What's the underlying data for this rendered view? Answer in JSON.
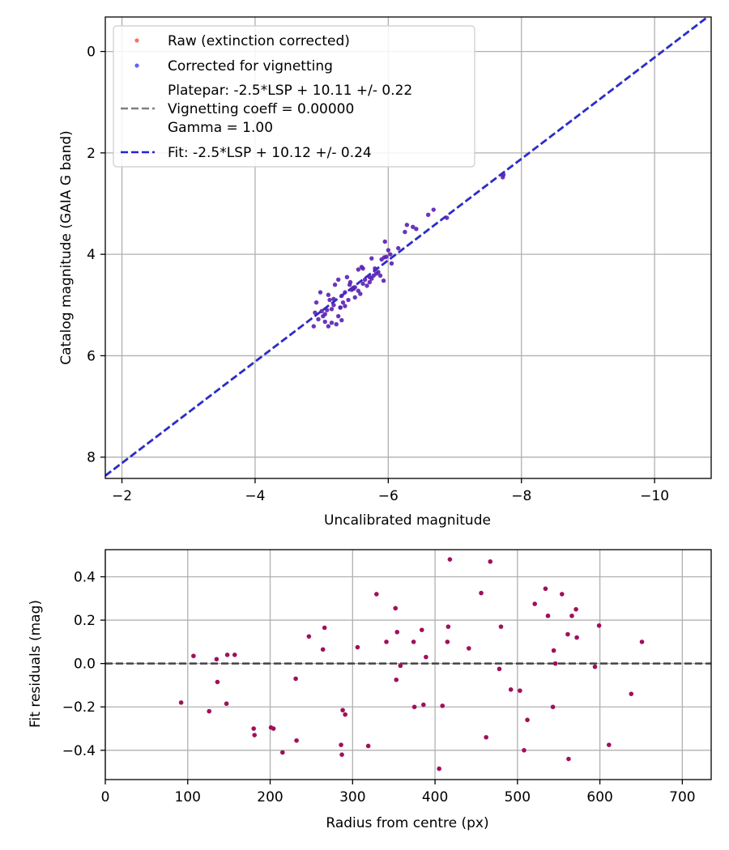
{
  "chart_data": [
    {
      "type": "scatter",
      "xlabel": "Uncalibrated magnitude",
      "ylabel": "Catalog magnitude (GAIA G band)",
      "xlim": [
        -1.75,
        -10.85
      ],
      "ylim": [
        8.42,
        -0.68
      ],
      "x_ticks": [
        -2,
        -4,
        -6,
        -8,
        -10
      ],
      "x_tick_labels": [
        "−2",
        "−4",
        "−6",
        "−8",
        "−10"
      ],
      "y_ticks": [
        0,
        2,
        4,
        6,
        8
      ],
      "y_tick_labels": [
        "0",
        "2",
        "4",
        "6",
        "8"
      ],
      "grid": true,
      "legend_position": "top-left",
      "legend": {
        "raw": "Raw (extinction corrected)",
        "corrected": "Corrected for vignetting",
        "platepar_line1": "Platepar: -2.5*LSP + 10.11 +/- 0.22",
        "platepar_line2": "Vignetting coeff = 0.00000",
        "platepar_line3": "Gamma = 1.00",
        "fit": "Fit: -2.5*LSP + 10.12 +/- 0.24"
      },
      "colors": {
        "raw": "#ff4b3c",
        "corrected": "#3c3cff",
        "overlap": "#5a1fb4",
        "platepar_line": "#808080",
        "fit_line": "#2222dd"
      },
      "lines": {
        "platepar": {
          "slope": 1.0,
          "intercept": 10.11
        },
        "fit": {
          "slope": 1.0,
          "intercept": 10.12
        }
      },
      "series": [
        {
          "name": "Corrected for vignetting",
          "x": [
            -7.73,
            -7.72,
            -6.88,
            -6.68,
            -6.6,
            -6.42,
            -6.37,
            -6.28,
            -6.25,
            -6.15,
            -6.05,
            -6.03,
            -6.0,
            -5.97,
            -5.93,
            -5.95,
            -5.88,
            -5.85,
            -5.8,
            -5.75,
            -5.72,
            -5.65,
            -5.6,
            -5.55,
            -5.5,
            -5.58,
            -5.62,
            -5.45,
            -5.5,
            -5.4,
            -5.43,
            -5.38,
            -5.35,
            -5.3,
            -5.32,
            -5.28,
            -5.25,
            -5.2,
            -5.18,
            -5.15,
            -5.12,
            -5.1,
            -5.08,
            -5.05,
            -5.02,
            -5.0,
            -4.98,
            -4.95,
            -4.92,
            -4.9,
            -5.15,
            -5.22,
            -5.3,
            -5.35,
            -5.42,
            -5.48,
            -5.55,
            -5.62,
            -5.68,
            -5.72,
            -5.75,
            -5.78,
            -5.82,
            -5.9,
            -5.94,
            -5.1,
            -5.05,
            -5.18,
            -5.25,
            -5.28,
            -4.88
          ],
          "y": [
            2.43,
            2.48,
            3.28,
            3.12,
            3.22,
            3.5,
            3.46,
            3.42,
            3.56,
            3.88,
            4.18,
            4.0,
            3.92,
            4.05,
            4.52,
            3.75,
            4.42,
            4.35,
            4.28,
            4.08,
            4.45,
            4.5,
            4.25,
            4.3,
            4.65,
            4.78,
            4.28,
            4.7,
            4.85,
            4.9,
            4.55,
            4.45,
            4.75,
            4.82,
            4.95,
            5.05,
            4.5,
            4.6,
            5.0,
            5.08,
            4.9,
            4.8,
            5.1,
            5.18,
            5.22,
            5.12,
            4.75,
            5.28,
            4.95,
            5.15,
            5.35,
            5.38,
            5.3,
            5.02,
            4.6,
            4.68,
            4.72,
            4.58,
            4.62,
            4.55,
            4.48,
            4.42,
            4.38,
            4.1,
            4.06,
            5.42,
            5.33,
            4.88,
            5.22,
            5.05,
            5.42
          ]
        }
      ]
    },
    {
      "type": "scatter",
      "xlabel": "Radius from centre (px)",
      "ylabel": "Fit residuals (mag)",
      "xlim": [
        0,
        735
      ],
      "ylim": [
        -0.535,
        0.525
      ],
      "x_ticks": [
        0,
        100,
        200,
        300,
        400,
        500,
        600,
        700
      ],
      "x_tick_labels": [
        "0",
        "100",
        "200",
        "300",
        "400",
        "500",
        "600",
        "700"
      ],
      "y_ticks": [
        0.4,
        0.2,
        0.0,
        -0.2,
        -0.4
      ],
      "y_tick_labels": [
        "0.4",
        "0.2",
        "0.0",
        "−0.2",
        "−0.4"
      ],
      "grid": true,
      "hline": 0.0,
      "colors": {
        "points": "#a0105a",
        "hline": "#444444"
      },
      "series": [
        {
          "name": "residuals",
          "x": [
            92,
            107,
            126,
            135,
            136,
            147,
            148,
            157,
            180,
            181,
            201,
            204,
            215,
            231,
            232,
            247,
            264,
            266,
            286,
            287,
            288,
            291,
            306,
            319,
            329,
            341,
            352,
            353,
            354,
            358,
            374,
            375,
            384,
            386,
            389,
            405,
            409,
            415,
            416,
            418,
            441,
            456,
            462,
            467,
            478,
            480,
            492,
            503,
            508,
            512,
            521,
            534,
            537,
            543,
            544,
            546,
            554,
            561,
            562,
            566,
            571,
            572,
            594,
            599,
            611,
            638,
            651
          ],
          "y": [
            -0.18,
            0.035,
            -0.22,
            0.02,
            -0.085,
            -0.185,
            0.04,
            0.04,
            -0.3,
            -0.33,
            -0.295,
            -0.3,
            -0.41,
            -0.07,
            -0.355,
            0.125,
            0.065,
            0.165,
            -0.375,
            -0.42,
            -0.215,
            -0.235,
            0.075,
            -0.38,
            0.32,
            0.1,
            0.255,
            -0.075,
            0.145,
            -0.01,
            0.1,
            -0.2,
            0.155,
            -0.19,
            0.03,
            -0.485,
            -0.195,
            0.1,
            0.17,
            0.48,
            0.07,
            0.325,
            -0.34,
            0.47,
            -0.025,
            0.17,
            -0.12,
            -0.125,
            -0.4,
            -0.26,
            0.275,
            0.345,
            0.22,
            -0.2,
            0.06,
            0.0,
            0.32,
            0.135,
            -0.44,
            0.22,
            0.25,
            0.12,
            -0.015,
            0.175,
            -0.375,
            -0.14,
            0.1
          ]
        }
      ]
    }
  ]
}
